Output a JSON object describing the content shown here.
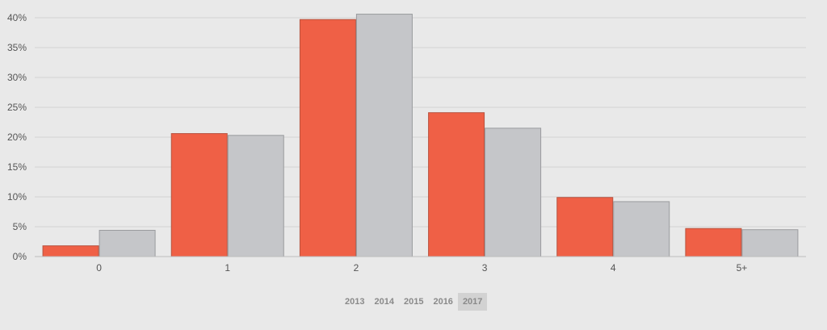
{
  "chart_data": {
    "type": "bar",
    "categories": [
      "0",
      "1",
      "2",
      "3",
      "4",
      "5+"
    ],
    "series": [
      {
        "color": "#ef6046",
        "values": [
          1.8,
          20.6,
          39.7,
          24.1,
          9.9,
          4.7
        ]
      },
      {
        "color": "#c5c6c9",
        "values": [
          4.4,
          20.3,
          40.6,
          21.5,
          9.2,
          4.5
        ]
      }
    ],
    "yticks": [
      "0%",
      "5%",
      "10%",
      "15%",
      "20%",
      "25%",
      "30%",
      "35%",
      "40%"
    ],
    "ylim": [
      0,
      40
    ],
    "grid": true
  },
  "years": {
    "items": [
      "2013",
      "2014",
      "2015",
      "2016",
      "2017"
    ],
    "active": "2017"
  }
}
